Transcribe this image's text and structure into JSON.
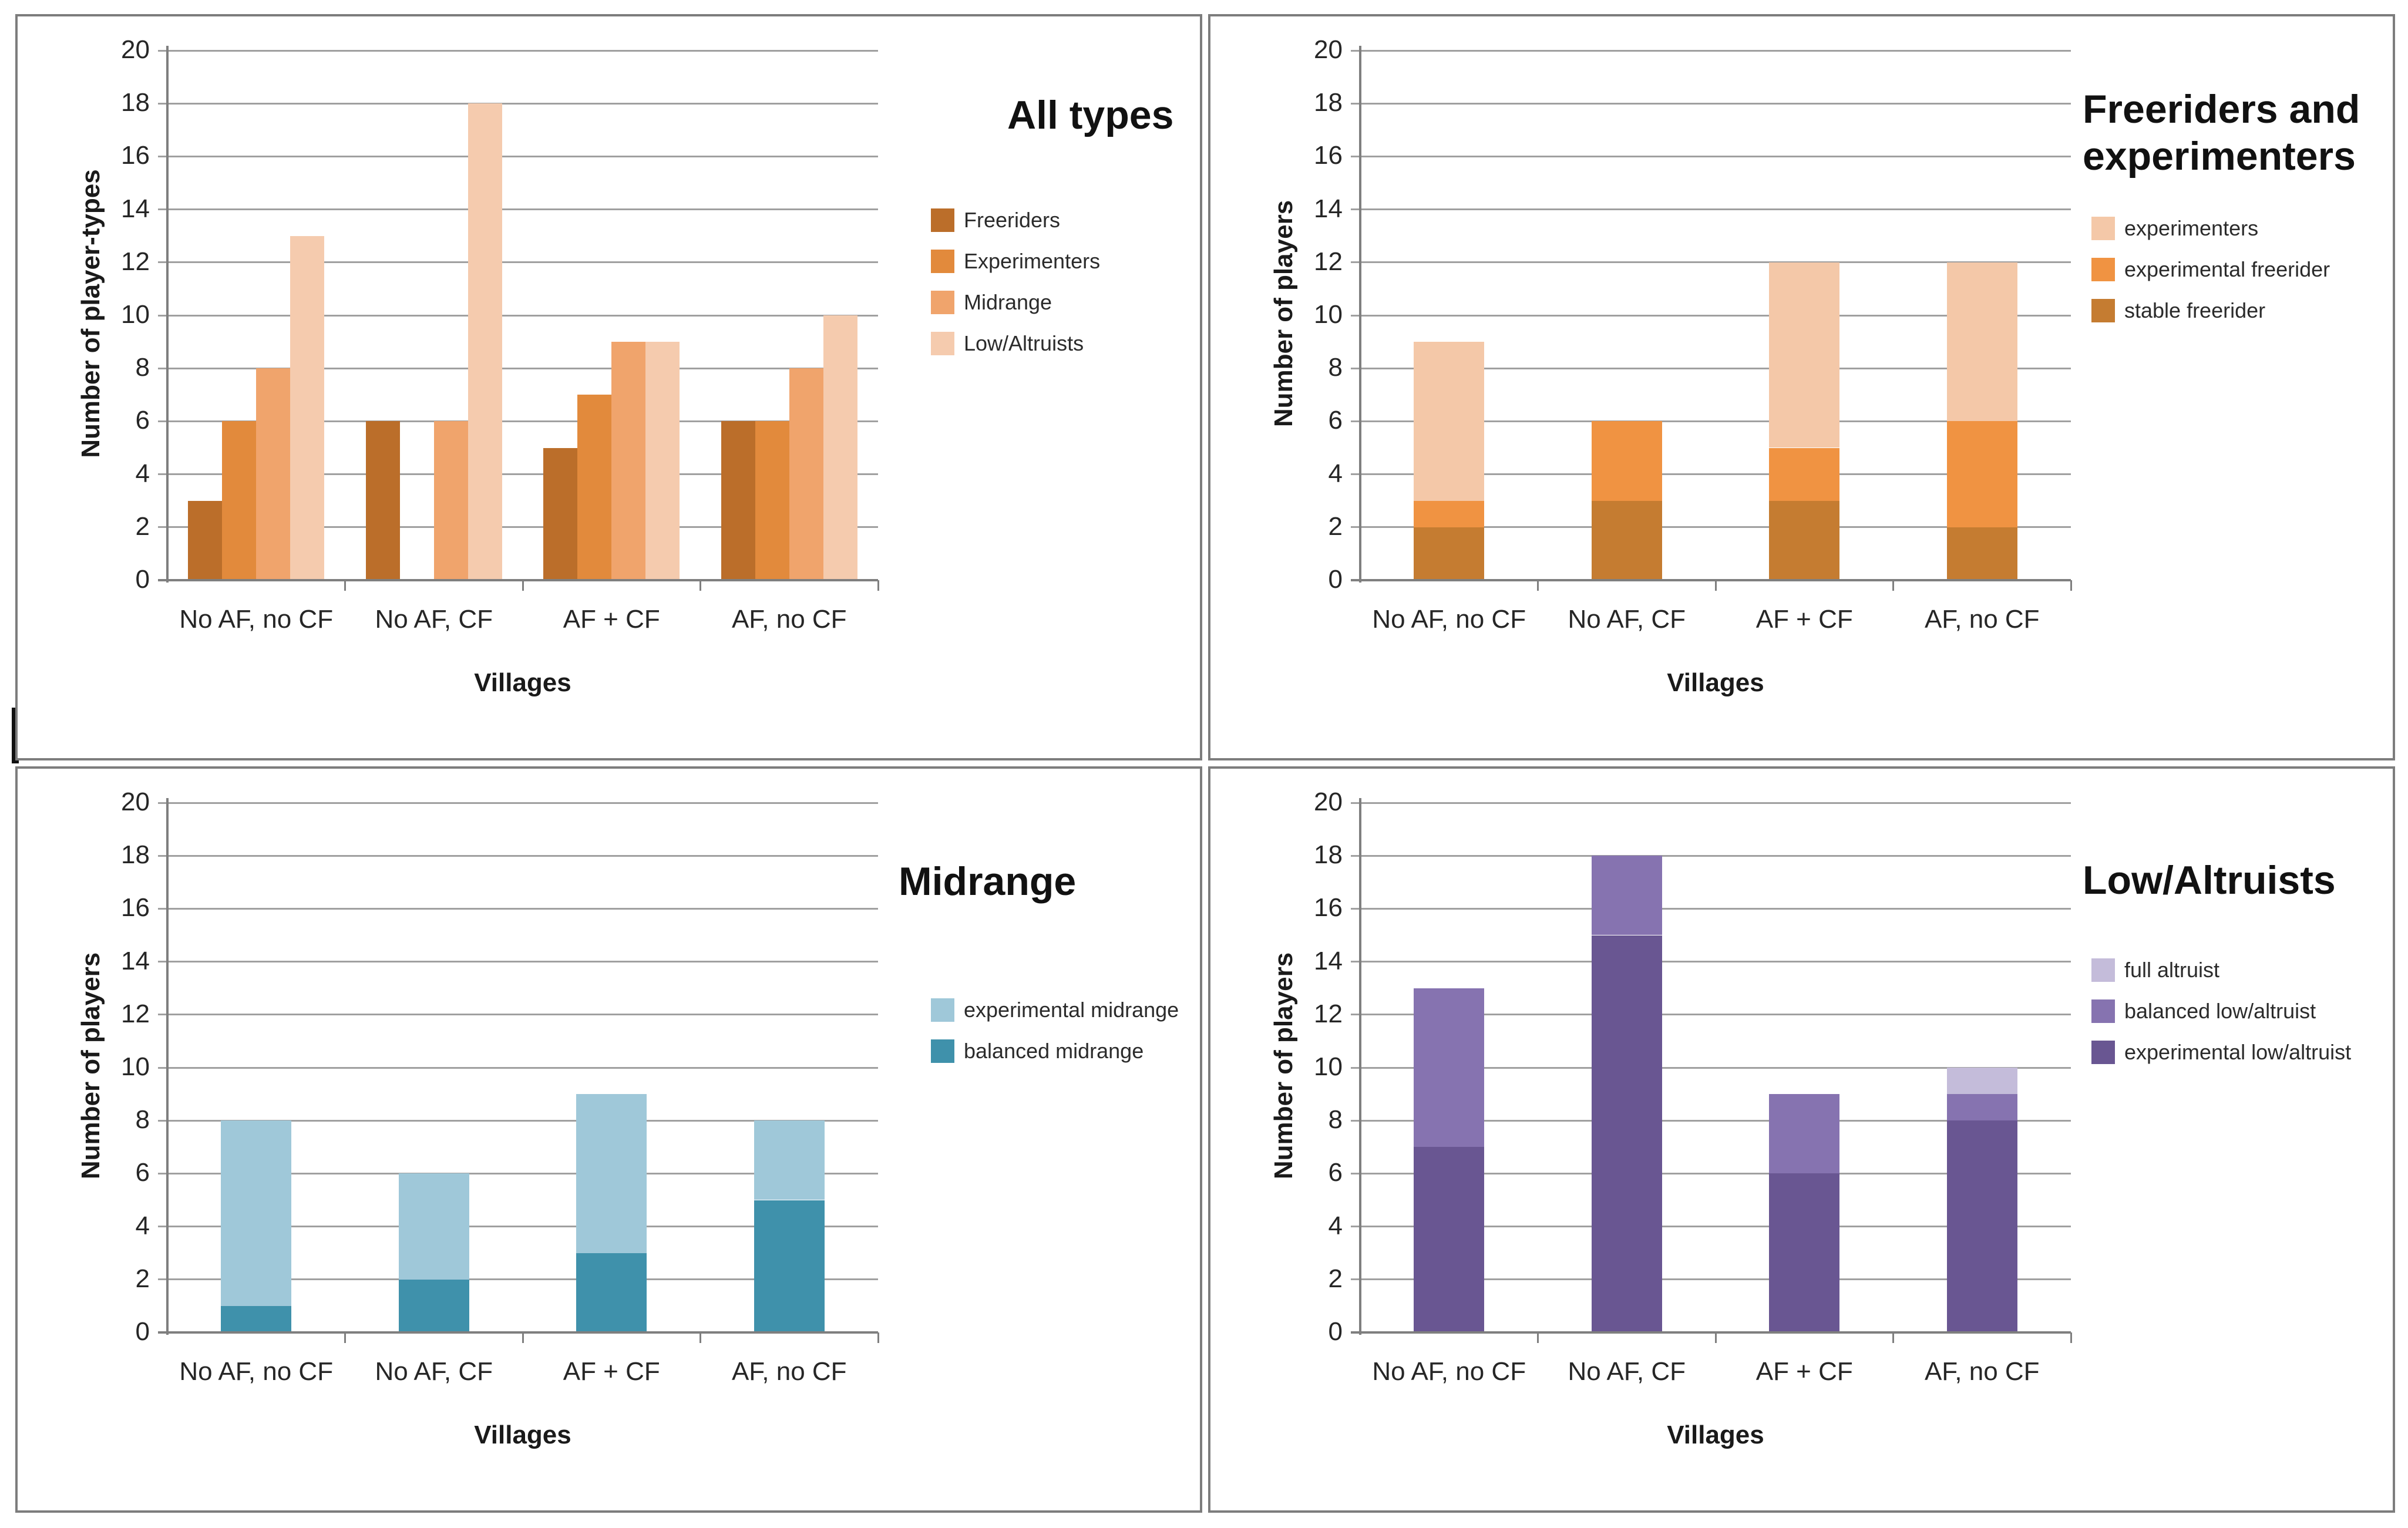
{
  "figure": {
    "description": "Four bar charts of player-type distributions across four villages",
    "panel_border_color": "#7d7d7d",
    "grid_color": "#a0a0a0",
    "axis_color": "#7f7f7f",
    "background": "#ffffff"
  },
  "chart_data": [
    {
      "type": "bar",
      "grouping": "grouped",
      "title": "All types",
      "ylabel": "Number of player-types",
      "xlabel": "Villages",
      "categories": [
        "No AF, no CF",
        "No AF, CF",
        "AF + CF",
        "AF, no CF"
      ],
      "ylim": [
        0,
        20
      ],
      "ytick_step": 2,
      "grid": true,
      "legend_position": "right",
      "legend_reversed": false,
      "series": [
        {
          "name": "Freeriders",
          "color": "#bb6e2a",
          "values": [
            3,
            6,
            5,
            6
          ]
        },
        {
          "name": "Experimenters",
          "color": "#e28a3c",
          "values": [
            6,
            0,
            7,
            6
          ]
        },
        {
          "name": "Midrange",
          "color": "#f0a46c",
          "values": [
            8,
            6,
            9,
            8
          ]
        },
        {
          "name": "Low/Altruists",
          "color": "#f5cbae",
          "values": [
            13,
            18,
            9,
            10
          ]
        }
      ]
    },
    {
      "type": "bar",
      "grouping": "stacked",
      "title": "Freeriders and experimenters",
      "ylabel": "Number of players",
      "xlabel": "Villages",
      "categories": [
        "No AF, no CF",
        "No AF, CF",
        "AF + CF",
        "AF, no CF"
      ],
      "ylim": [
        0,
        20
      ],
      "ytick_step": 2,
      "grid": true,
      "legend_position": "right",
      "legend_reversed": true,
      "series": [
        {
          "name": "stable freerider",
          "color": "#c57c31",
          "values": [
            2,
            3,
            3,
            2
          ]
        },
        {
          "name": "experimental freerider",
          "color": "#f09342",
          "values": [
            1,
            3,
            2,
            4
          ]
        },
        {
          "name": "experimenters",
          "color": "#f4c8a8",
          "values": [
            6,
            0,
            7,
            6
          ]
        }
      ]
    },
    {
      "type": "bar",
      "grouping": "stacked",
      "title": "Midrange",
      "ylabel": "Number of players",
      "xlabel": "Villages",
      "categories": [
        "No AF, no CF",
        "No AF, CF",
        "AF + CF",
        "AF, no CF"
      ],
      "ylim": [
        0,
        20
      ],
      "ytick_step": 2,
      "grid": true,
      "legend_position": "right",
      "legend_reversed": true,
      "series": [
        {
          "name": "balanced midrange",
          "color": "#3f91ab",
          "values": [
            1,
            2,
            3,
            5
          ]
        },
        {
          "name": "experimental midrange",
          "color": "#9fc8d9",
          "values": [
            7,
            4,
            6,
            3
          ]
        }
      ]
    },
    {
      "type": "bar",
      "grouping": "stacked",
      "title": "Low/Altruists",
      "ylabel": "Number of players",
      "xlabel": "Villages",
      "categories": [
        "No AF, no CF",
        "No AF, CF",
        "AF + CF",
        "AF, no CF"
      ],
      "ylim": [
        0,
        20
      ],
      "ytick_step": 2,
      "grid": true,
      "legend_position": "right",
      "legend_reversed": true,
      "series": [
        {
          "name": "experimental low/altruist",
          "color": "#695692",
          "values": [
            7,
            15,
            6,
            8
          ]
        },
        {
          "name": "balanced low/altruist",
          "color": "#8673b0",
          "values": [
            6,
            3,
            3,
            1
          ]
        },
        {
          "name": "full altruist",
          "color": "#c4bcda",
          "values": [
            0,
            0,
            0,
            1
          ]
        }
      ]
    }
  ]
}
